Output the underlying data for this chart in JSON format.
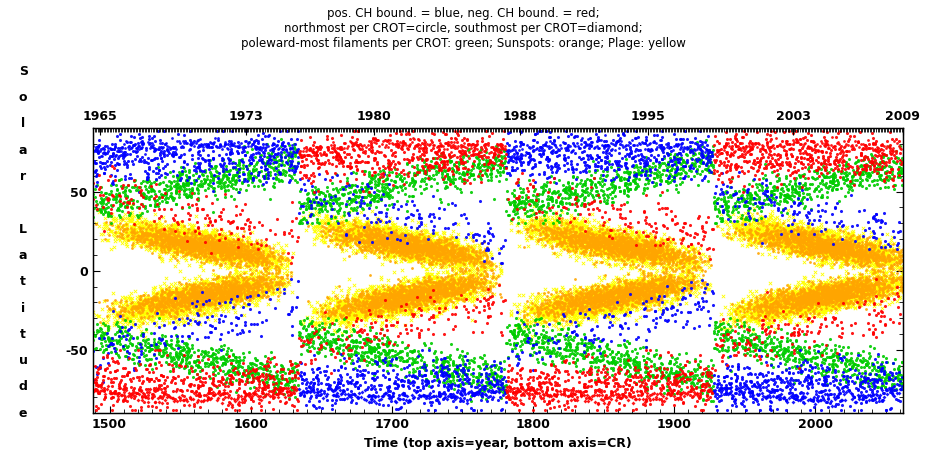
{
  "title_lines": [
    "pos. CH bound. = blue, neg. CH bound. = red;",
    "northmost per CROT=circle, southmost per CROT=diamond;",
    "poleward-most filaments per CROT: green; Sunspots: orange; Plage: yellow"
  ],
  "xlabel": "Time (top axis=year, bottom axis=CR)",
  "ylabel_chars": [
    "S",
    "o",
    "l",
    "a",
    "r",
    "",
    "L",
    "a",
    "t",
    "i",
    "t",
    "u",
    "d",
    "e"
  ],
  "cr_min": 1488,
  "cr_max": 2062,
  "lat_min": -90,
  "lat_max": 90,
  "year_ticks": [
    1965,
    1973,
    1980,
    1988,
    1995,
    2003,
    2009
  ],
  "cr_ticks": [
    1500,
    1600,
    1700,
    1800,
    1900,
    2000
  ],
  "year_to_cr_slope": 13.3696,
  "year_ref": 1964.5,
  "cr_ref": 1487,
  "cycle_period_cr": 147.0,
  "sunspot_color": "#FFA500",
  "plage_color": "#FFFF00",
  "filament_color": "#00CC00",
  "pos_ch_color": "#0000FF",
  "neg_ch_color": "#FF0000",
  "seed": 42
}
